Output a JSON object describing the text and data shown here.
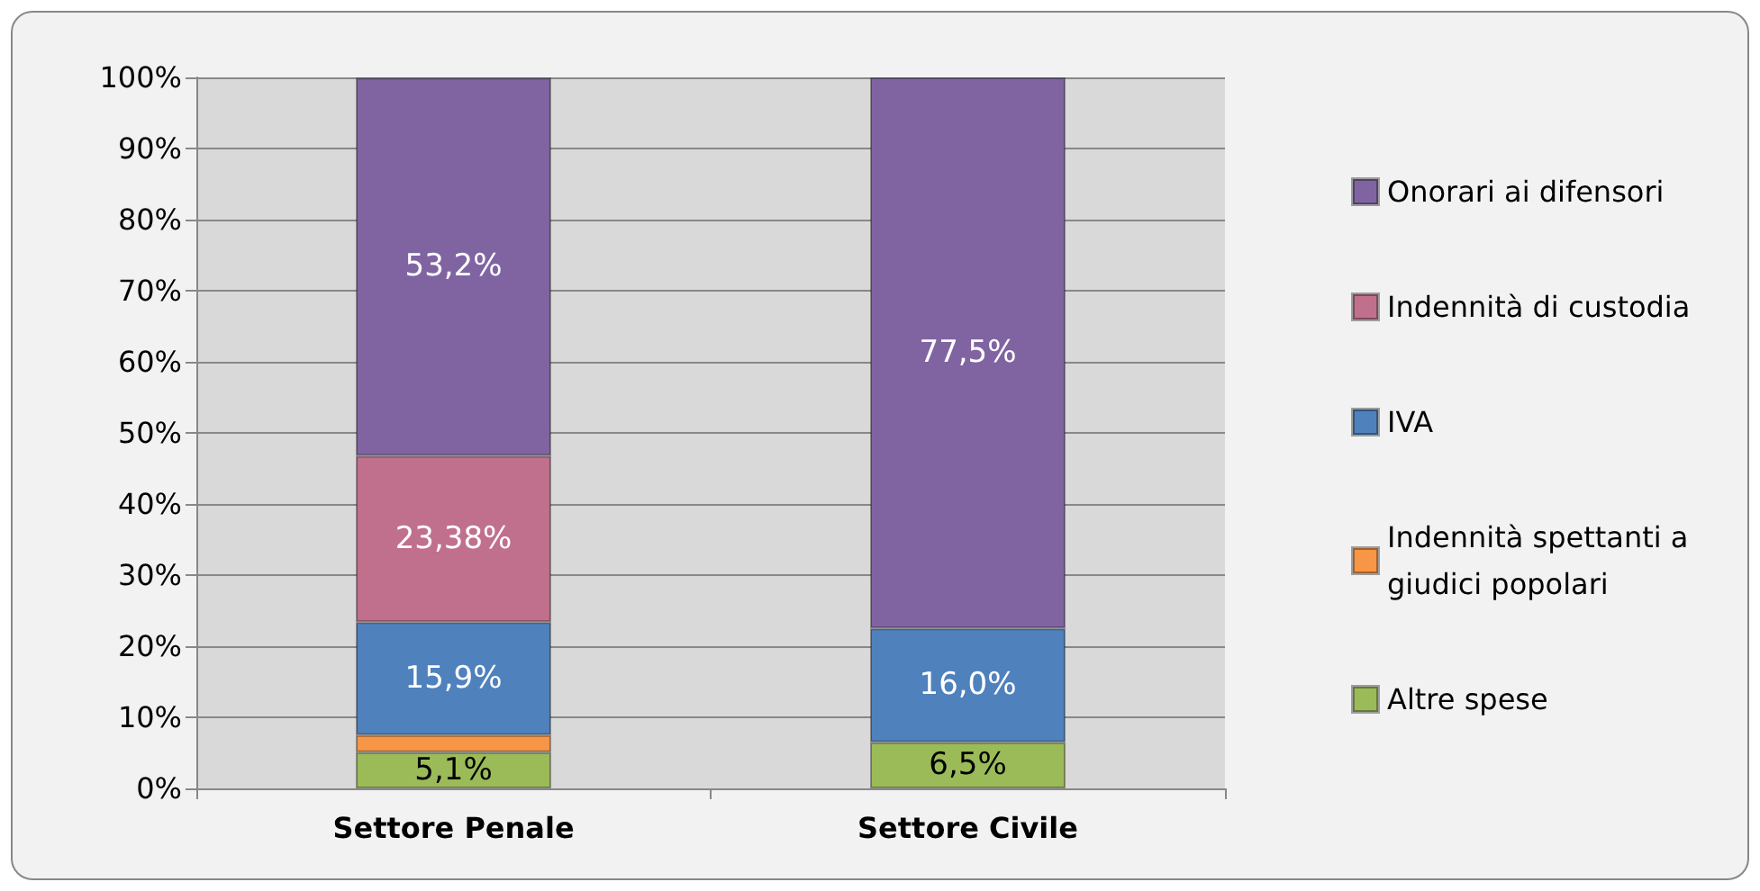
{
  "chart_data": {
    "type": "bar",
    "stacked": true,
    "categories": [
      "Settore Penale",
      "Settore Civile"
    ],
    "series": [
      {
        "name": "Altre spese",
        "color": "#9bbb59",
        "values": [
          5.1,
          6.5
        ],
        "value_labels": [
          "5,1%",
          "6,5%"
        ]
      },
      {
        "name": "Indennità spettanti a giudici popolari",
        "color": "#f79646",
        "values": [
          2.4,
          null
        ],
        "value_labels": [
          null,
          null
        ]
      },
      {
        "name": "IVA",
        "color": "#4f81bd",
        "values": [
          15.9,
          16.0
        ],
        "value_labels": [
          "15,9%",
          "16,0%"
        ]
      },
      {
        "name": "Indennità di custodia",
        "color": "#c0708c",
        "values": [
          23.38,
          null
        ],
        "value_labels": [
          "23,38%",
          null
        ]
      },
      {
        "name": "Onorari ai difensori",
        "color": "#8064a2",
        "values": [
          53.2,
          77.5
        ],
        "value_labels": [
          "53,2%",
          "77,5%"
        ]
      }
    ],
    "ylim": [
      0,
      100
    ],
    "yticks": [
      {
        "value": 0,
        "label": "0%"
      },
      {
        "value": 10,
        "label": "10%"
      },
      {
        "value": 20,
        "label": "20%"
      },
      {
        "value": 30,
        "label": "30%"
      },
      {
        "value": 40,
        "label": "40%"
      },
      {
        "value": 50,
        "label": "50%"
      },
      {
        "value": 60,
        "label": "60%"
      },
      {
        "value": 70,
        "label": "70%"
      },
      {
        "value": 80,
        "label": "80%"
      },
      {
        "value": 90,
        "label": "90%"
      },
      {
        "value": 100,
        "label": "100%"
      }
    ],
    "grid": "y",
    "legend": "right"
  }
}
